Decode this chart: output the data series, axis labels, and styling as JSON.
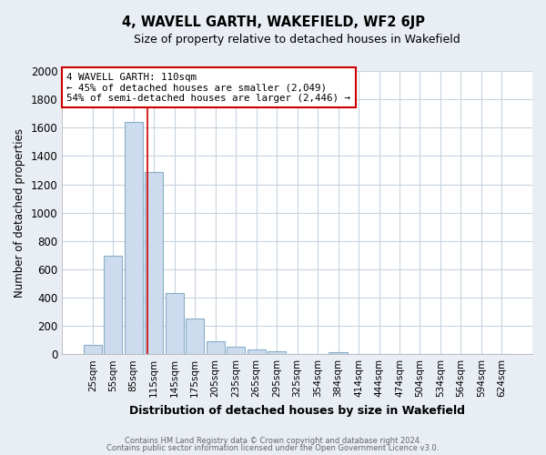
{
  "title": "4, WAVELL GARTH, WAKEFIELD, WF2 6JP",
  "subtitle": "Size of property relative to detached houses in Wakefield",
  "xlabel": "Distribution of detached houses by size in Wakefield",
  "ylabel": "Number of detached properties",
  "bar_labels": [
    "25sqm",
    "55sqm",
    "85sqm",
    "115sqm",
    "145sqm",
    "175sqm",
    "205sqm",
    "235sqm",
    "265sqm",
    "295sqm",
    "325sqm",
    "354sqm",
    "384sqm",
    "414sqm",
    "444sqm",
    "474sqm",
    "504sqm",
    "534sqm",
    "564sqm",
    "594sqm",
    "624sqm"
  ],
  "bar_values": [
    65,
    693,
    1638,
    1285,
    432,
    252,
    90,
    52,
    35,
    22,
    0,
    0,
    14,
    0,
    0,
    0,
    0,
    0,
    0,
    0,
    0
  ],
  "bar_color": "#ccdcee",
  "bar_edge_color": "#8aaec8",
  "vline_color": "#cc0000",
  "vline_pos": 2.67,
  "annotation_title": "4 WAVELL GARTH: 110sqm",
  "annotation_line1": "← 45% of detached houses are smaller (2,049)",
  "annotation_line2": "54% of semi-detached houses are larger (2,446) →",
  "annotation_box_color": "#cc0000",
  "ylim": [
    0,
    2000
  ],
  "yticks": [
    0,
    200,
    400,
    600,
    800,
    1000,
    1200,
    1400,
    1600,
    1800,
    2000
  ],
  "footer1": "Contains HM Land Registry data © Crown copyright and database right 2024.",
  "footer2": "Contains public sector information licensed under the Open Government Licence v3.0.",
  "background_color": "#e8eef4",
  "plot_background_color": "#ffffff",
  "grid_color": "#c8d4e0"
}
